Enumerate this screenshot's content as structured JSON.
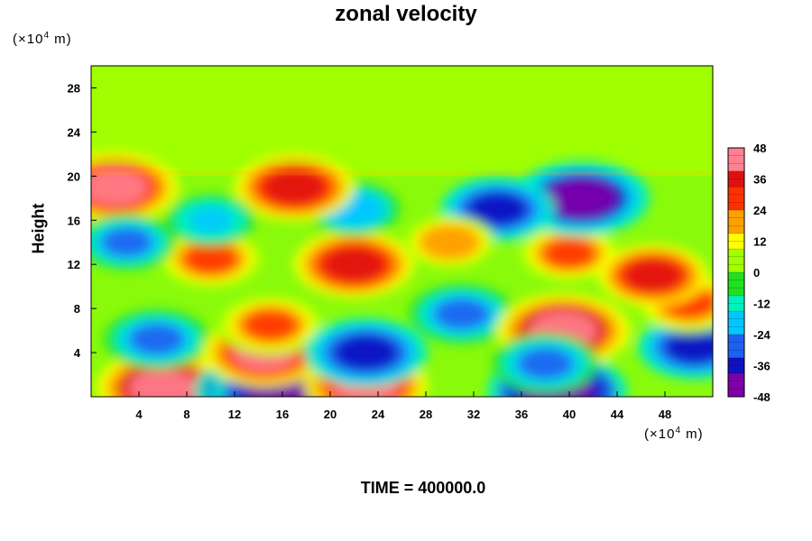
{
  "chart_data": {
    "type": "heatmap",
    "title": "zonal velocity",
    "ylabel": "Height",
    "xlabel": "",
    "x_unit_prefix": "(×10",
    "x_unit_exp": "4",
    "x_unit_suffix": " m)",
    "y_unit_prefix": "(×10",
    "y_unit_exp": "4",
    "y_unit_suffix": " m)",
    "footer": "TIME = 400000.0",
    "xlim": [
      0,
      52
    ],
    "ylim": [
      0,
      30
    ],
    "x_ticks": [
      "4",
      "8",
      "12",
      "16",
      "20",
      "24",
      "28",
      "32",
      "36",
      "40",
      "44",
      "48"
    ],
    "y_ticks": [
      "4",
      "8",
      "12",
      "16",
      "20",
      "24",
      "28"
    ],
    "colorbar_range": [
      -48,
      48
    ],
    "colorbar_ticks": [
      "48",
      "36",
      "24",
      "12",
      "0",
      "-12",
      "-24",
      "-36",
      "-48"
    ],
    "colormap": [
      "#7f00a8",
      "#1010c0",
      "#2060f0",
      "#00c8ff",
      "#00f0c0",
      "#20e020",
      "#a0ff00",
      "#ffff00",
      "#ffa000",
      "#ff3000",
      "#e01010",
      "#ff8090"
    ],
    "background_value": 0,
    "features": [
      {
        "x": 6,
        "y": 0.8,
        "value": 46
      },
      {
        "x": 14.5,
        "y": 0.5,
        "value": -50
      },
      {
        "x": 16,
        "y": 0.5,
        "value": -50
      },
      {
        "x": 23,
        "y": 1,
        "value": 40
      },
      {
        "x": 39,
        "y": 0.5,
        "value": -50
      },
      {
        "x": 5.5,
        "y": 5.2,
        "value": -30
      },
      {
        "x": 14.5,
        "y": 4,
        "value": 40
      },
      {
        "x": 15,
        "y": 6.5,
        "value": 30
      },
      {
        "x": 23,
        "y": 4,
        "value": -40
      },
      {
        "x": 31,
        "y": 7.5,
        "value": -30
      },
      {
        "x": 39.5,
        "y": 6,
        "value": 46
      },
      {
        "x": 38,
        "y": 3,
        "value": -30
      },
      {
        "x": 50.5,
        "y": 4.5,
        "value": -35
      },
      {
        "x": 50,
        "y": 8.5,
        "value": 30
      },
      {
        "x": 22,
        "y": 12,
        "value": 38
      },
      {
        "x": 10,
        "y": 12.5,
        "value": 30
      },
      {
        "x": 40,
        "y": 13,
        "value": 28
      },
      {
        "x": 47,
        "y": 11,
        "value": 32
      },
      {
        "x": 41,
        "y": 18,
        "value": -48
      },
      {
        "x": 34,
        "y": 17,
        "value": -35
      },
      {
        "x": 22,
        "y": 17,
        "value": -22
      },
      {
        "x": 2,
        "y": 19,
        "value": 42
      },
      {
        "x": 17,
        "y": 19,
        "value": 38
      },
      {
        "x": 3,
        "y": 14,
        "value": -25
      },
      {
        "x": 30,
        "y": 14,
        "value": 22
      },
      {
        "x": 10,
        "y": 16,
        "value": -20
      }
    ]
  }
}
